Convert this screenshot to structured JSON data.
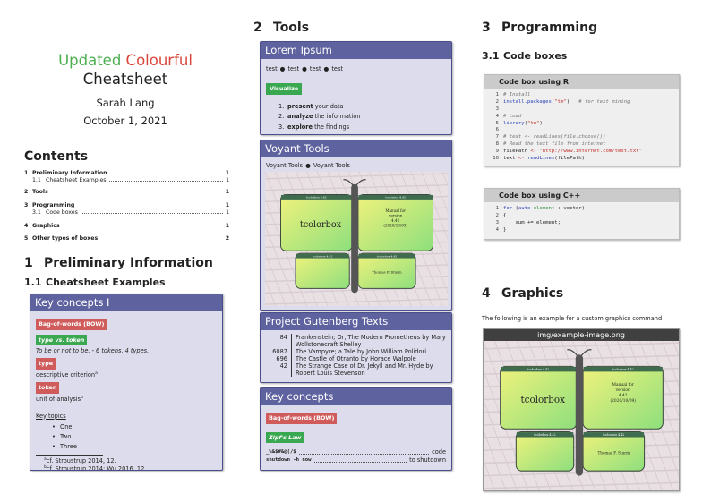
{
  "title": {
    "word1": "Updated",
    "word2": "Colourful",
    "line2": "Cheatsheet",
    "author": "Sarah Lang",
    "date": "October 1, 2021"
  },
  "contents": {
    "heading": "Contents",
    "entries": [
      {
        "num": "1",
        "title": "Preliminary Information",
        "page": 1,
        "level": 1
      },
      {
        "num": "1.1",
        "title": "Cheatsheet Examples",
        "page": 1,
        "level": 2
      },
      {
        "num": "2",
        "title": "Tools",
        "page": 1,
        "level": 1
      },
      {
        "num": "3",
        "title": "Programming",
        "page": 1,
        "level": 1
      },
      {
        "num": "3.1",
        "title": "Code boxes",
        "page": 1,
        "level": 2
      },
      {
        "num": "4",
        "title": "Graphics",
        "page": 1,
        "level": 1
      },
      {
        "num": "5",
        "title": "Other types of boxes",
        "page": 2,
        "level": 1
      }
    ]
  },
  "section1": {
    "num": "1",
    "title": "Preliminary Information",
    "sub_num": "1.1",
    "sub_title": "Cheatsheet Examples"
  },
  "key_concepts_1": {
    "title": "Key concepts I",
    "tag1": "Bag-of-words (BOW)",
    "tag2": "type vs. token",
    "tag2_text": "To be or not to be. - 6 tokens, 4 types.",
    "tag3": "type",
    "tag3_text": "descriptive criterion",
    "tag3_mark": "a",
    "tag4": "token",
    "tag4_text": "unit of analysis",
    "tag4_mark": "b",
    "topics_heading": "Key topics",
    "topics": [
      "One",
      "Two",
      "Three"
    ],
    "footnotes": [
      {
        "mark": "a",
        "text": "cf. Stroustrup 2014, 12."
      },
      {
        "mark": "b",
        "text": "cf. Stroustrup 2014; Wu 2016, 12."
      }
    ]
  },
  "section2": {
    "num": "2",
    "title": "Tools"
  },
  "lorem": {
    "title": "Lorem Ipsum",
    "items": [
      "test",
      "test",
      "test",
      "test"
    ],
    "button": "Visualize",
    "steps": [
      {
        "n": "1.",
        "bold": "present",
        "text": "your data"
      },
      {
        "n": "2.",
        "bold": "analyze",
        "text": "the information"
      },
      {
        "n": "3.",
        "bold": "explore",
        "text": "the findings"
      }
    ]
  },
  "voyant": {
    "title": "Voyant Tools",
    "items": [
      "Voyant Tools",
      "Voyant Tools"
    ]
  },
  "gutenberg": {
    "title": "Project Gutenberg Texts",
    "rows": [
      {
        "id": 84,
        "text": "Frankenstein; Or, The Modern Prometheus by Mary Wollstonecraft Shelley"
      },
      {
        "id": 6087,
        "text": "The Vampyre; a Tale by John William Polidori"
      },
      {
        "id": 696,
        "text": "The Castle of Otranto by Horace Walpole"
      },
      {
        "id": 42,
        "text": "The Strange Case of Dr. Jekyll and Mr. Hyde by Robert Louis Stevenson"
      }
    ]
  },
  "key_concepts_2": {
    "title": "Key concepts",
    "tag1": "Bag-of-words (BOW)",
    "tag2": "Zipf's Law",
    "rows": [
      {
        "left": "_%&$#&@(/$",
        "right": "code"
      },
      {
        "left": "shutdown -h now",
        "right": "to shutdown"
      }
    ]
  },
  "section3": {
    "num": "3",
    "title": "Programming",
    "sub_num": "3.1",
    "sub_title": "Code boxes"
  },
  "code_r": {
    "title": "Code box using R",
    "lines": [
      {
        "n": 1,
        "tokens": [
          {
            "t": "# Install",
            "k": "comment"
          }
        ]
      },
      {
        "n": 2,
        "tokens": [
          {
            "t": "install.packages",
            "k": "func"
          },
          {
            "t": "(",
            "k": "plain"
          },
          {
            "t": "\"tm\"",
            "k": "string"
          },
          {
            "t": ")",
            "k": "plain"
          },
          {
            "t": "   # for text mining",
            "k": "comment"
          }
        ]
      },
      {
        "n": 3,
        "tokens": []
      },
      {
        "n": 4,
        "tokens": [
          {
            "t": "# Load",
            "k": "comment"
          }
        ]
      },
      {
        "n": 5,
        "tokens": [
          {
            "t": "library",
            "k": "func"
          },
          {
            "t": "(",
            "k": "plain"
          },
          {
            "t": "\"tm\"",
            "k": "string"
          },
          {
            "t": ")",
            "k": "plain"
          }
        ]
      },
      {
        "n": 6,
        "tokens": []
      },
      {
        "n": 7,
        "tokens": [
          {
            "t": "# text <- readLines(file.choose())",
            "k": "comment"
          }
        ]
      },
      {
        "n": 8,
        "tokens": [
          {
            "t": "# Read the text file from internet",
            "k": "comment"
          }
        ]
      },
      {
        "n": 9,
        "tokens": [
          {
            "t": "filePath",
            "k": "plain"
          },
          {
            "t": " <- ",
            "k": "op"
          },
          {
            "t": "\"http://www.internet.com/text.txt\"",
            "k": "string"
          }
        ]
      },
      {
        "n": 10,
        "tokens": [
          {
            "t": "text",
            "k": "plain"
          },
          {
            "t": " <- ",
            "k": "op"
          },
          {
            "t": "readLines",
            "k": "func"
          },
          {
            "t": "(filePath)",
            "k": "plain"
          }
        ]
      }
    ]
  },
  "code_cpp": {
    "title": "Code box using C++",
    "lines": [
      {
        "n": 1,
        "tokens": [
          {
            "t": "for",
            "k": "func"
          },
          {
            "t": " (",
            "k": "plain"
          },
          {
            "t": "auto",
            "k": "func"
          },
          {
            "t": " element",
            "k": "var"
          },
          {
            "t": " : vector)",
            "k": "plain"
          }
        ]
      },
      {
        "n": 2,
        "tokens": [
          {
            "t": "{",
            "k": "plain"
          }
        ]
      },
      {
        "n": 3,
        "tokens": [
          {
            "t": "    sum += element;",
            "k": "plain"
          }
        ]
      },
      {
        "n": 4,
        "tokens": [
          {
            "t": "}",
            "k": "plain"
          }
        ]
      }
    ]
  },
  "section4": {
    "num": "4",
    "title": "Graphics",
    "text": "The following is an example for a custom graphics command",
    "caption": "img/example-image.png"
  },
  "example_image": {
    "header": "tcolorbox 4.42",
    "name": "tcolorbox",
    "manual": [
      "Manual for",
      "version",
      "4.42",
      "(2020/10/09)"
    ],
    "author": "Thomas F. Sturm"
  }
}
